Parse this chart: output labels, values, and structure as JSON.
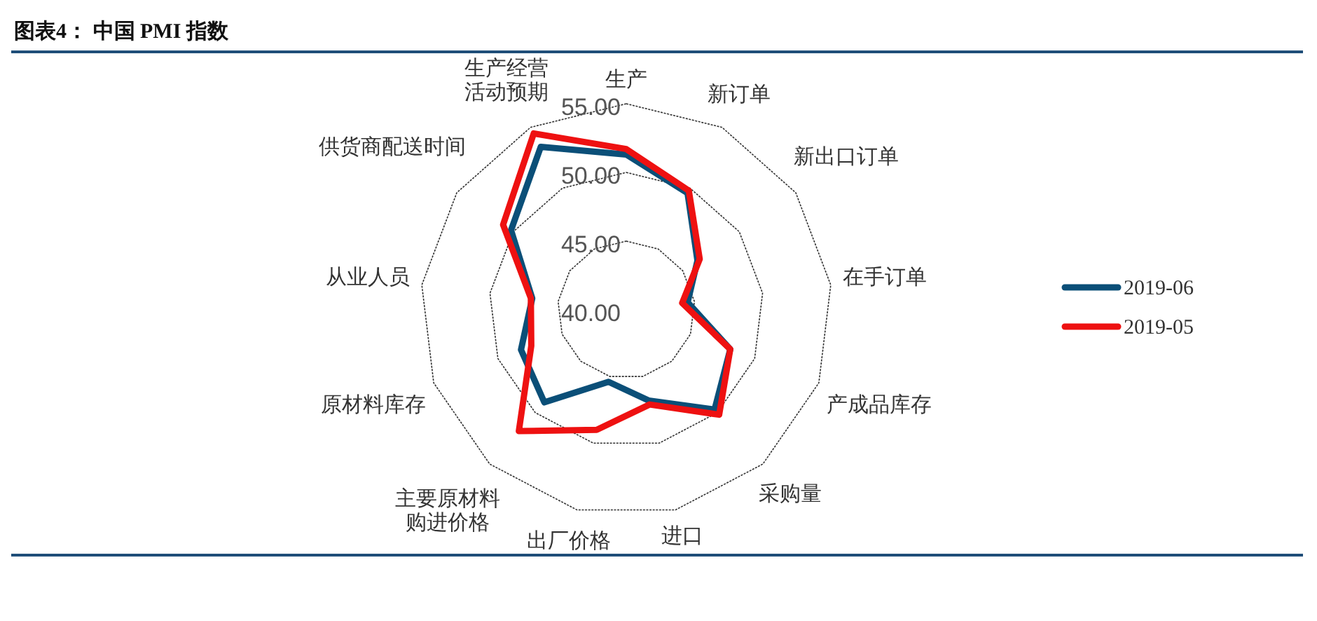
{
  "chart_data": {
    "type": "radar",
    "title": "图表4： 中国 PMI 指数",
    "categories": [
      "生产",
      "新订单",
      "新出口订单",
      "在手订单",
      "产成品库存",
      "采购量",
      "进口",
      "出厂价格",
      "主要原材料购进价格",
      "原材料库存",
      "从业人员",
      "供货商配送时间",
      "生产经营活动预期"
    ],
    "series": [
      {
        "name": "2019-06",
        "color": "#0b4f78",
        "values": [
          51.3,
          49.6,
          46.3,
          44.5,
          48.1,
          49.7,
          46.8,
          45.4,
          49.0,
          48.2,
          46.9,
          50.2,
          53.4
        ]
      },
      {
        "name": "2019-05",
        "color": "#ee1111",
        "values": [
          51.7,
          49.8,
          46.5,
          44.1,
          48.1,
          50.2,
          47.1,
          49.0,
          51.8,
          47.4,
          47.0,
          50.9,
          54.5
        ]
      }
    ],
    "ylim": [
      40,
      55
    ],
    "yticks": [
      {
        "value": 40,
        "label": "40.00"
      },
      {
        "value": 45,
        "label": "45.00"
      },
      {
        "value": 50,
        "label": "50.00"
      },
      {
        "value": 55,
        "label": "55.00"
      }
    ],
    "grid": true,
    "legend": "right",
    "line_style": "solid",
    "marker": "none"
  }
}
